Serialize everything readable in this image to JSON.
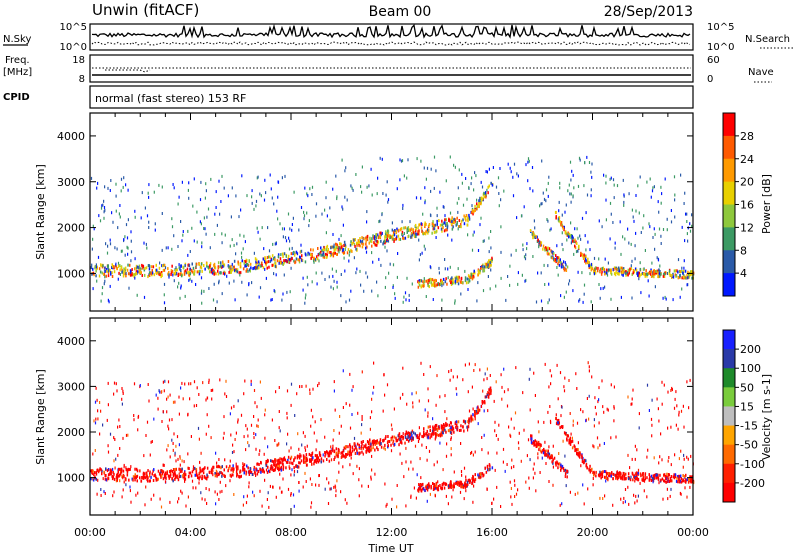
{
  "header": {
    "station": "Unwin (fitACF)",
    "beam": "Beam 00",
    "date": "28/Sep/2013"
  },
  "noise_panel": {
    "left_label": "N.Sky",
    "right_label": "N.Search",
    "tick_top": "10^5",
    "tick_bottom": "10^0"
  },
  "freq_panel": {
    "left_label_1": "Freq.",
    "left_label_2": "[MHz]",
    "left_ticks": [
      "18",
      "8"
    ],
    "right_label": "Nave",
    "right_ticks": [
      "60",
      "0"
    ]
  },
  "cpid_panel": {
    "left_label": "CPID",
    "text": "normal (fast stereo) 153 RF"
  },
  "chart_data": [
    {
      "type": "heatmap",
      "quantity": "power",
      "ylabel": "Slant Range [km]",
      "yticks": [
        "4000",
        "3000",
        "2000",
        "1000"
      ],
      "ylim": [
        180,
        4500
      ],
      "xlim": [
        "00:00",
        "24:00"
      ],
      "colorbar": {
        "label": "Power [dB]",
        "ticks": [
          "28",
          "24",
          "20",
          "16",
          "12",
          "8",
          "4"
        ],
        "colors": [
          "#ff0000",
          "#ff5a00",
          "#ff9a00",
          "#e8d000",
          "#8ec83c",
          "#3c9a64",
          "#2a5aa8",
          "#0018ff"
        ]
      },
      "features": [
        {
          "t": [
            0,
            3,
            6,
            9,
            12,
            15
          ],
          "range": [
            1100,
            1080,
            1180,
            1450,
            1850,
            2200
          ]
        },
        {
          "t": [
            15,
            16
          ],
          "range": [
            2200,
            3000
          ]
        },
        {
          "t": [
            17.5,
            19
          ],
          "range": [
            1900,
            1100
          ]
        },
        {
          "t": [
            18.5,
            20,
            24
          ],
          "range": [
            2300,
            1100,
            1000
          ]
        },
        {
          "t": [
            13,
            15,
            16
          ],
          "range": [
            800,
            900,
            1300
          ]
        }
      ]
    },
    {
      "type": "heatmap",
      "quantity": "velocity",
      "ylabel": "Slant Range [km]",
      "yticks": [
        "4000",
        "3000",
        "2000",
        "1000"
      ],
      "ylim": [
        180,
        4500
      ],
      "xlim": [
        "00:00",
        "24:00"
      ],
      "colorbar": {
        "label": "Velocity [m s-1]",
        "ticks": [
          "200",
          "100",
          "50",
          "15",
          "-15",
          "-50",
          "-100",
          "-200"
        ],
        "colors": [
          "#1820ff",
          "#2a3aa8",
          "#1e8a2a",
          "#7acc3c",
          "#bebebe",
          "#ffa500",
          "#ff6a00",
          "#ff2000",
          "#ff0000"
        ]
      },
      "features": [
        {
          "t": [
            0,
            3,
            6,
            9,
            12,
            15
          ],
          "range": [
            1100,
            1080,
            1180,
            1450,
            1850,
            2200
          ]
        },
        {
          "t": [
            15,
            16
          ],
          "range": [
            2200,
            3000
          ]
        },
        {
          "t": [
            17.5,
            19
          ],
          "range": [
            1900,
            1100
          ]
        },
        {
          "t": [
            18.5,
            20,
            24
          ],
          "range": [
            2300,
            1100,
            1000
          ]
        },
        {
          "t": [
            13,
            15,
            16
          ],
          "range": [
            800,
            900,
            1300
          ]
        }
      ]
    }
  ],
  "xaxis": {
    "ticks": [
      "00:00",
      "04:00",
      "08:00",
      "12:00",
      "16:00",
      "20:00",
      "00:00"
    ],
    "label": "Time UT"
  }
}
